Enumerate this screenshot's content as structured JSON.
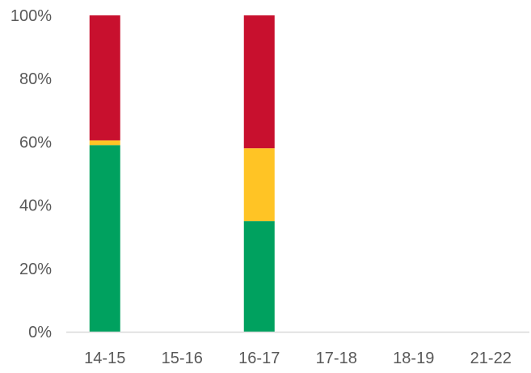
{
  "chart_data": {
    "type": "bar",
    "stacked": true,
    "percent_stacked": true,
    "categories": [
      "14-15",
      "15-16",
      "16-17",
      "17-18",
      "18-19",
      "21-22"
    ],
    "series": [
      {
        "color": "#00A15F",
        "values": [
          59,
          0,
          35,
          0,
          0,
          0
        ]
      },
      {
        "color": "#FFC425",
        "values": [
          1.5,
          0,
          23,
          0,
          0,
          0
        ]
      },
      {
        "color": "#C8102E",
        "values": [
          39.5,
          0,
          42,
          0,
          0,
          0
        ]
      }
    ],
    "y_ticks": [
      "0%",
      "20%",
      "40%",
      "60%",
      "80%",
      "100%"
    ],
    "y_tick_values": [
      0,
      20,
      40,
      60,
      80,
      100
    ],
    "ylim": [
      0,
      100
    ],
    "grid": false,
    "legend": "none"
  }
}
